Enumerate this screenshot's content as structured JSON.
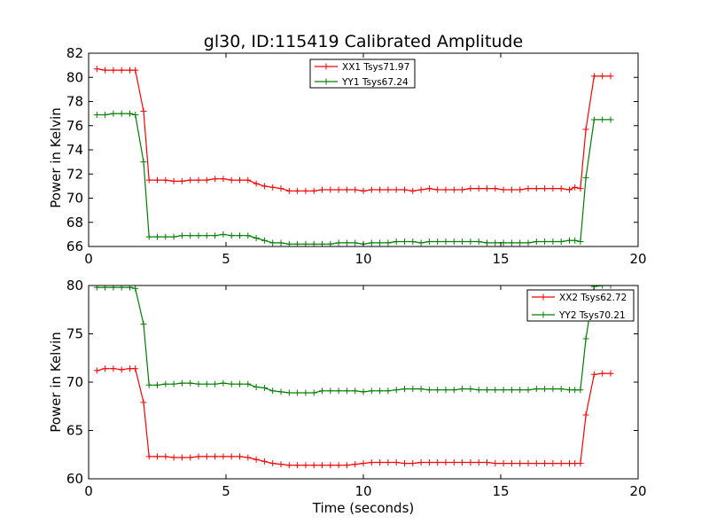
{
  "chart_data": [
    {
      "type": "line",
      "title": "gl30, ID:115419 Calibrated Amplitude",
      "xlabel": "",
      "ylabel": "Power in Kelvin",
      "xlim": [
        0,
        20
      ],
      "ylim": [
        66,
        82
      ],
      "xticks": [
        "0",
        "5",
        "10",
        "15",
        "20"
      ],
      "yticks": [
        "66",
        "68",
        "70",
        "72",
        "74",
        "76",
        "78",
        "80",
        "82"
      ],
      "grid": false,
      "legend": "top-center",
      "x": [
        0.3,
        0.6,
        0.9,
        1.2,
        1.5,
        1.7,
        2.0,
        2.2,
        2.5,
        2.8,
        3.1,
        3.4,
        3.7,
        4.0,
        4.3,
        4.6,
        4.9,
        5.2,
        5.5,
        5.8,
        6.1,
        6.4,
        6.7,
        7.0,
        7.3,
        7.6,
        7.9,
        8.2,
        8.5,
        8.8,
        9.1,
        9.4,
        9.7,
        10.0,
        10.3,
        10.6,
        10.9,
        11.2,
        11.5,
        11.8,
        12.1,
        12.4,
        12.7,
        13.0,
        13.3,
        13.6,
        13.9,
        14.2,
        14.5,
        14.8,
        15.1,
        15.4,
        15.7,
        16.0,
        16.3,
        16.6,
        16.9,
        17.2,
        17.5,
        17.7,
        17.9,
        18.1,
        18.4,
        18.7,
        19.0
      ],
      "series": [
        {
          "name": "XX1 Tsys71.97",
          "color": "#ff0000",
          "values": [
            80.7,
            80.6,
            80.6,
            80.6,
            80.6,
            80.6,
            77.2,
            71.5,
            71.5,
            71.5,
            71.4,
            71.4,
            71.5,
            71.5,
            71.5,
            71.6,
            71.6,
            71.5,
            71.5,
            71.5,
            71.2,
            71.0,
            70.9,
            70.8,
            70.6,
            70.6,
            70.6,
            70.6,
            70.7,
            70.7,
            70.7,
            70.7,
            70.7,
            70.6,
            70.7,
            70.7,
            70.7,
            70.7,
            70.7,
            70.6,
            70.7,
            70.8,
            70.7,
            70.7,
            70.7,
            70.7,
            70.8,
            70.8,
            70.8,
            70.8,
            70.7,
            70.7,
            70.7,
            70.8,
            70.8,
            70.8,
            70.8,
            70.8,
            70.7,
            70.9,
            70.8,
            75.7,
            80.1,
            80.1,
            80.1
          ]
        },
        {
          "name": "YY1 Tsys67.24",
          "color": "#008000",
          "values": [
            76.9,
            76.9,
            77.0,
            77.0,
            77.0,
            76.9,
            73.0,
            66.8,
            66.8,
            66.8,
            66.8,
            66.9,
            66.9,
            66.9,
            66.9,
            66.9,
            67.0,
            66.9,
            66.9,
            66.9,
            66.7,
            66.5,
            66.3,
            66.3,
            66.2,
            66.2,
            66.2,
            66.2,
            66.2,
            66.2,
            66.3,
            66.3,
            66.3,
            66.2,
            66.3,
            66.3,
            66.3,
            66.4,
            66.4,
            66.4,
            66.3,
            66.4,
            66.4,
            66.4,
            66.4,
            66.4,
            66.4,
            66.4,
            66.3,
            66.3,
            66.3,
            66.3,
            66.3,
            66.3,
            66.4,
            66.4,
            66.4,
            66.4,
            66.5,
            66.5,
            66.4,
            71.7,
            76.5,
            76.5,
            76.5
          ]
        }
      ]
    },
    {
      "type": "line",
      "title": "",
      "xlabel": "Time (seconds)",
      "ylabel": "Power in Kelvin",
      "xlim": [
        0,
        20
      ],
      "ylim": [
        60,
        80
      ],
      "xticks": [
        "0",
        "5",
        "10",
        "15",
        "20"
      ],
      "yticks": [
        "60",
        "65",
        "70",
        "75",
        "80"
      ],
      "grid": false,
      "legend": "top-right",
      "x": [
        0.3,
        0.6,
        0.9,
        1.2,
        1.5,
        1.7,
        2.0,
        2.2,
        2.5,
        2.8,
        3.1,
        3.4,
        3.7,
        4.0,
        4.3,
        4.6,
        4.9,
        5.2,
        5.5,
        5.8,
        6.1,
        6.4,
        6.7,
        7.0,
        7.3,
        7.6,
        7.9,
        8.2,
        8.5,
        8.8,
        9.1,
        9.4,
        9.7,
        10.0,
        10.3,
        10.6,
        10.9,
        11.2,
        11.5,
        11.8,
        12.1,
        12.4,
        12.7,
        13.0,
        13.3,
        13.6,
        13.9,
        14.2,
        14.5,
        14.8,
        15.1,
        15.4,
        15.7,
        16.0,
        16.3,
        16.6,
        16.9,
        17.2,
        17.5,
        17.7,
        17.9,
        18.1,
        18.4,
        18.7,
        19.0
      ],
      "series": [
        {
          "name": "XX2 Tsys62.72",
          "color": "#ff0000",
          "values": [
            71.2,
            71.4,
            71.4,
            71.3,
            71.4,
            71.4,
            67.9,
            62.3,
            62.3,
            62.3,
            62.2,
            62.2,
            62.2,
            62.3,
            62.3,
            62.3,
            62.3,
            62.3,
            62.3,
            62.2,
            62.0,
            61.8,
            61.6,
            61.5,
            61.4,
            61.4,
            61.4,
            61.4,
            61.4,
            61.4,
            61.4,
            61.4,
            61.5,
            61.6,
            61.7,
            61.7,
            61.7,
            61.7,
            61.6,
            61.6,
            61.7,
            61.7,
            61.7,
            61.7,
            61.7,
            61.7,
            61.7,
            61.7,
            61.7,
            61.6,
            61.6,
            61.6,
            61.6,
            61.6,
            61.6,
            61.6,
            61.6,
            61.6,
            61.6,
            61.6,
            61.6,
            66.6,
            70.8,
            70.9,
            70.9
          ]
        },
        {
          "name": "YY2 Tsys70.21",
          "color": "#008000",
          "values": [
            79.8,
            79.8,
            79.8,
            79.8,
            79.8,
            79.7,
            76.0,
            69.7,
            69.7,
            69.8,
            69.8,
            69.9,
            69.9,
            69.8,
            69.8,
            69.8,
            69.9,
            69.8,
            69.8,
            69.8,
            69.5,
            69.4,
            69.1,
            69.0,
            68.9,
            68.9,
            68.9,
            68.9,
            69.1,
            69.1,
            69.1,
            69.1,
            69.1,
            69.0,
            69.1,
            69.1,
            69.1,
            69.2,
            69.3,
            69.3,
            69.3,
            69.2,
            69.2,
            69.2,
            69.2,
            69.3,
            69.3,
            69.2,
            69.2,
            69.2,
            69.2,
            69.2,
            69.2,
            69.2,
            69.3,
            69.3,
            69.3,
            69.3,
            69.2,
            69.2,
            69.2,
            74.5,
            79.9,
            80.0,
            80.0
          ]
        }
      ]
    }
  ]
}
